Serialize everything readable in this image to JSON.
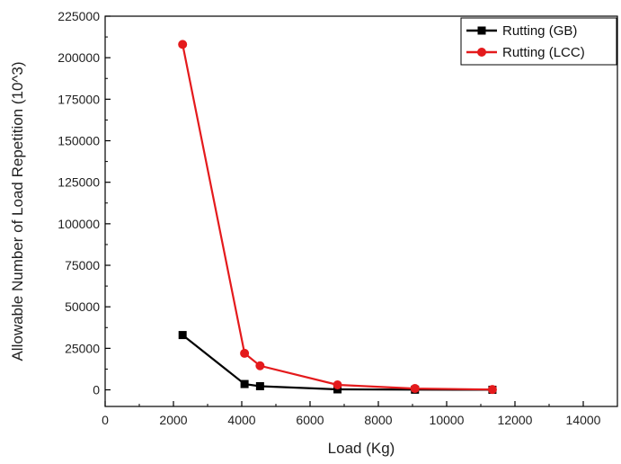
{
  "chart_data": {
    "type": "line",
    "title": "",
    "xlabel": "Load (Kg)",
    "ylabel": "Allowable Number of Load Repetition (10^3)",
    "xlim": [
      0,
      15000
    ],
    "ylim": [
      -10000,
      225000
    ],
    "x_ticks": [
      0,
      2000,
      4000,
      6000,
      8000,
      10000,
      12000,
      14000
    ],
    "y_ticks": [
      0,
      25000,
      50000,
      75000,
      100000,
      125000,
      150000,
      175000,
      200000,
      225000
    ],
    "grid": false,
    "legend_position": "top-right",
    "series": [
      {
        "name": "Rutting (GB)",
        "color": "#000000",
        "marker": "square",
        "x": [
          2268,
          4082,
          4536,
          6804,
          9072,
          11340
        ],
        "y": [
          33000,
          3500,
          2200,
          300,
          100,
          50
        ]
      },
      {
        "name": "Rutting (LCC)",
        "color": "#e41a1c",
        "marker": "circle",
        "x": [
          2268,
          4082,
          4536,
          6804,
          9072,
          11340
        ],
        "y": [
          208000,
          22000,
          14500,
          3000,
          800,
          200
        ]
      }
    ]
  }
}
